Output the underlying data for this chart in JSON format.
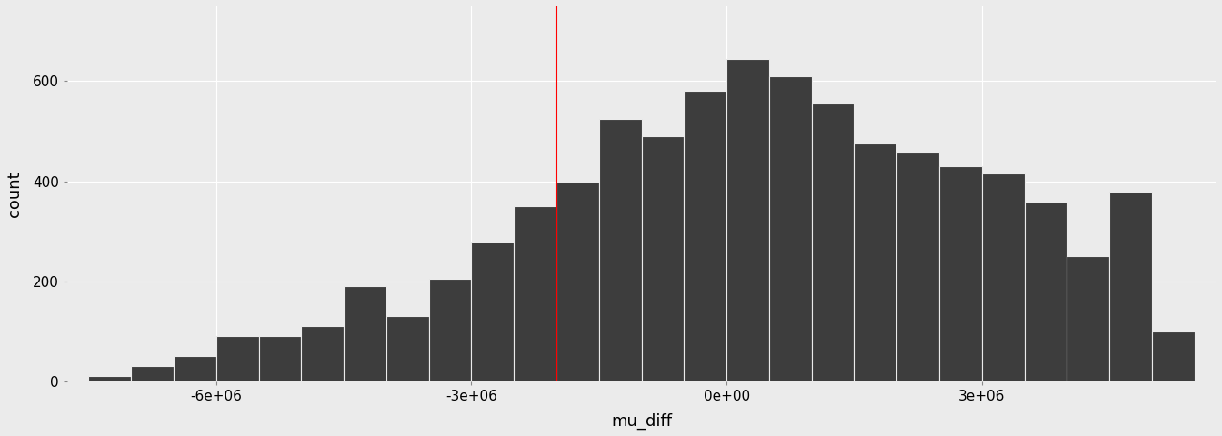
{
  "xlabel": "mu_diff",
  "ylabel": "count",
  "background_color": "#EBEBEB",
  "bar_color": "#3D3D3D",
  "grid_color": "#FFFFFF",
  "red_line_x": -2000000,
  "red_line_color": "red",
  "xlim": [
    -7750000,
    5750000
  ],
  "ylim": [
    0,
    750
  ],
  "yticks": [
    0,
    200,
    400,
    600
  ],
  "xticks": [
    -6000000,
    -3000000,
    0,
    3000000
  ],
  "xtick_labels": [
    "-6e+06",
    "-3e+06",
    "0e+00",
    "3e+06"
  ],
  "bin_width": 500000,
  "bin_left_edges": [
    -7500000,
    -7000000,
    -6500000,
    -6000000,
    -5500000,
    -5000000,
    -4500000,
    -4000000,
    -3500000,
    -3000000,
    -2500000,
    -2000000,
    -1500000,
    -1000000,
    -500000,
    0,
    500000,
    1000000,
    1500000,
    2000000,
    2500000,
    3000000,
    3500000,
    4000000,
    4500000,
    5000000
  ],
  "bin_counts": [
    10,
    30,
    50,
    90,
    90,
    110,
    190,
    130,
    205,
    280,
    350,
    400,
    525,
    490,
    580,
    645,
    610,
    555,
    475,
    460,
    430,
    415,
    360,
    250,
    380,
    100
  ]
}
